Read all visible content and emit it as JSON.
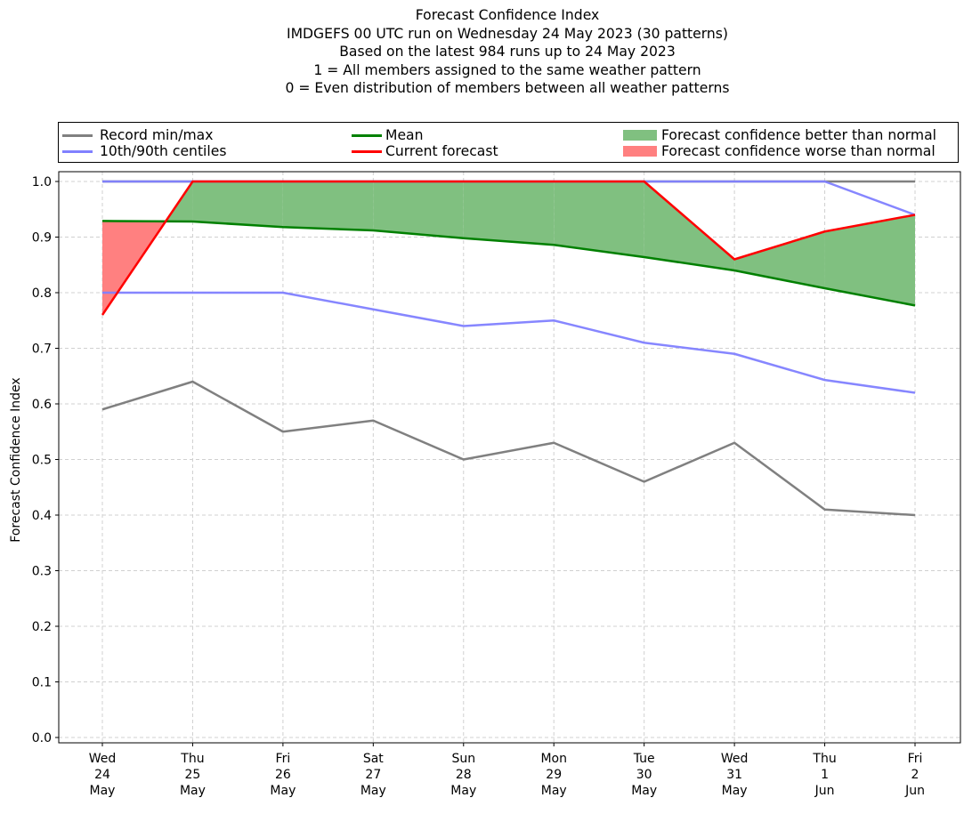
{
  "chart_data": {
    "type": "line",
    "title": "Forecast Confidence Index",
    "subtitles": [
      "IMDGEFS 00 UTC run on Wednesday 24 May 2023 (30 patterns)",
      "Based on the latest 984 runs up to 24 May 2023",
      "1 = All members assigned to the same weather pattern",
      "0 = Even distribution of members between all weather patterns"
    ],
    "xlabel": "",
    "ylabel": "Forecast Confidence Index",
    "ylim": [
      0.0,
      1.0
    ],
    "yticks": [
      "0.0",
      "0.1",
      "0.2",
      "0.3",
      "0.4",
      "0.5",
      "0.6",
      "0.7",
      "0.8",
      "0.9",
      "1.0"
    ],
    "grid": true,
    "legend_placement": "top",
    "categories": [
      [
        "Wed",
        "24",
        "May"
      ],
      [
        "Thu",
        "25",
        "May"
      ],
      [
        "Fri",
        "26",
        "May"
      ],
      [
        "Sat",
        "27",
        "May"
      ],
      [
        "Sun",
        "28",
        "May"
      ],
      [
        "Mon",
        "29",
        "May"
      ],
      [
        "Tue",
        "30",
        "May"
      ],
      [
        "Wed",
        "31",
        "May"
      ],
      [
        "Thu",
        "1",
        "Jun"
      ],
      [
        "Fri",
        "2",
        "Jun"
      ]
    ],
    "series": [
      {
        "name": "Record max",
        "legend": "Record min/max",
        "color": "#808080",
        "values": [
          1.0,
          1.0,
          1.0,
          1.0,
          1.0,
          1.0,
          1.0,
          1.0,
          1.0,
          1.0
        ]
      },
      {
        "name": "Record min",
        "legend": "Record min/max",
        "color": "#808080",
        "values": [
          0.59,
          0.64,
          0.55,
          0.57,
          0.5,
          0.53,
          0.46,
          0.53,
          0.41,
          0.4
        ]
      },
      {
        "name": "90th centile",
        "legend": "10th/90th centiles",
        "color": "#8080ff",
        "values": [
          1.0,
          1.0,
          1.0,
          1.0,
          1.0,
          1.0,
          1.0,
          1.0,
          1.0,
          0.94
        ]
      },
      {
        "name": "10th centile",
        "legend": "10th/90th centiles",
        "color": "#8080ff",
        "values": [
          0.8,
          0.8,
          0.8,
          0.77,
          0.74,
          0.75,
          0.71,
          0.69,
          0.643,
          0.62
        ]
      },
      {
        "name": "Mean",
        "legend": "Mean",
        "color": "#008000",
        "values": [
          0.929,
          0.928,
          0.918,
          0.912,
          0.898,
          0.886,
          0.864,
          0.84,
          0.808,
          0.777
        ]
      },
      {
        "name": "Current forecast",
        "legend": "Current forecast",
        "color": "#ff0000",
        "values": [
          0.76,
          1.0,
          1.0,
          1.0,
          1.0,
          1.0,
          1.0,
          0.86,
          0.91,
          0.94
        ]
      }
    ],
    "fills": [
      {
        "name": "Forecast confidence better than normal",
        "color": "#80c080",
        "condition": "current > mean"
      },
      {
        "name": "Forecast confidence worse than normal",
        "color": "#ff8080",
        "condition": "current < mean"
      }
    ]
  },
  "legend": {
    "record": "Record min/max",
    "centiles": "10th/90th centiles",
    "mean": "Mean",
    "current": "Current forecast",
    "better": "Forecast confidence better than normal",
    "worse": "Forecast confidence worse than normal"
  }
}
